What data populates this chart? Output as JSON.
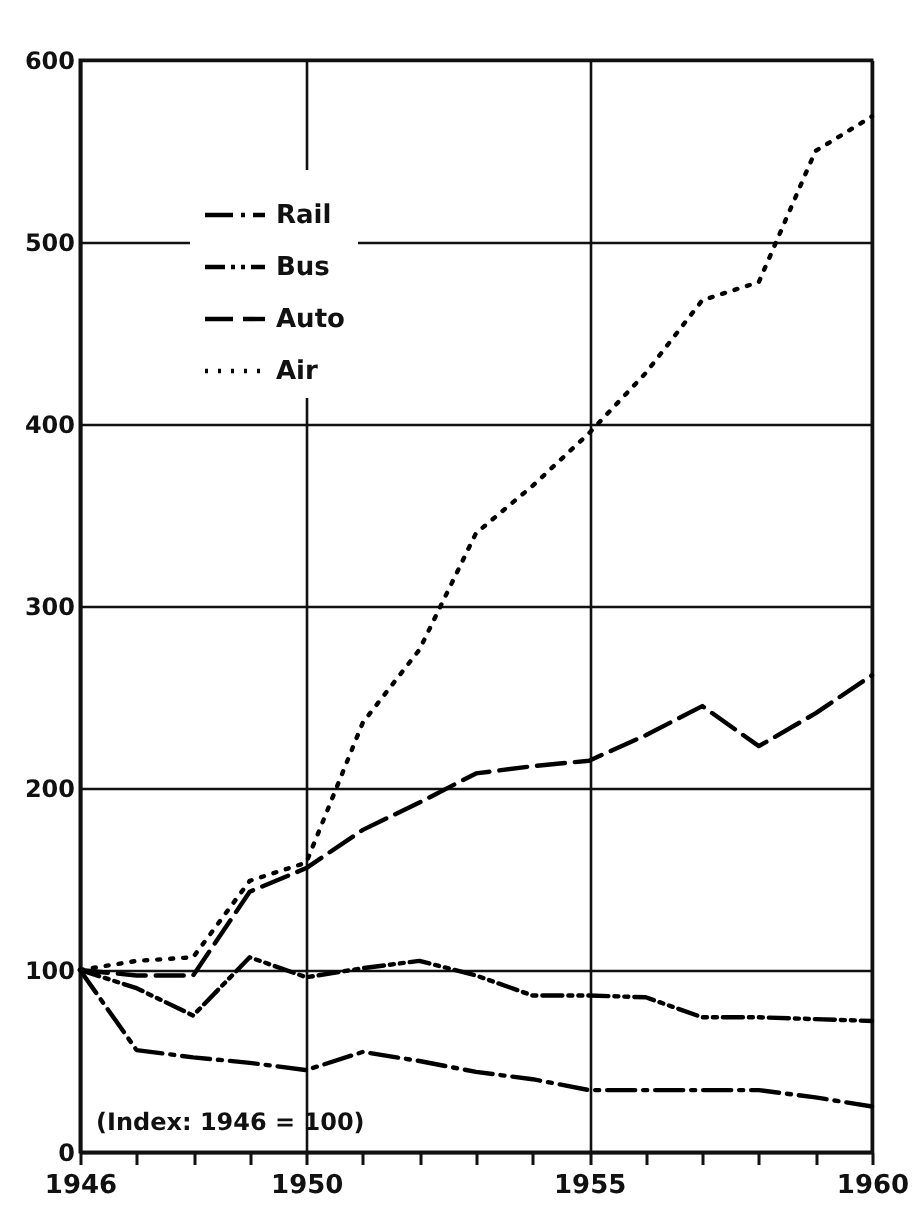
{
  "chart_data": {
    "type": "line",
    "x": [
      1946,
      1947,
      1948,
      1949,
      1950,
      1951,
      1952,
      1953,
      1954,
      1955,
      1956,
      1957,
      1958,
      1959,
      1960
    ],
    "series": [
      {
        "name": "Rail",
        "color": "#000000",
        "line_style": "dashed",
        "values": [
          100,
          56,
          52,
          49,
          45,
          55,
          50,
          44,
          40,
          34,
          34,
          34,
          34,
          30,
          25
        ]
      },
      {
        "name": "Bus",
        "color": "#000000",
        "line_style": "dashed",
        "values": [
          100,
          90,
          75,
          107,
          96,
          101,
          105,
          97,
          86,
          86,
          85,
          74,
          74,
          73,
          72
        ]
      },
      {
        "name": "Auto",
        "color": "#000000",
        "line_style": "dashed",
        "values": [
          100,
          97,
          97,
          143,
          156,
          177,
          192,
          208,
          212,
          215,
          229,
          245,
          223,
          241,
          262
        ]
      },
      {
        "name": "Air",
        "color": "#000000",
        "line_style": "dotted",
        "values": [
          100,
          105,
          107,
          149,
          159,
          236,
          276,
          340,
          366,
          395,
          428,
          468,
          478,
          550,
          569
        ]
      }
    ],
    "xlim": [
      1946,
      1960
    ],
    "xticks": [
      1946,
      {
        "value": 1947,
        "label": null
      },
      {
        "value": 1948,
        "label": null
      },
      {
        "value": 1949,
        "label": null
      },
      1950,
      {
        "value": 1951,
        "label": null
      },
      {
        "value": 1952,
        "label": null
      },
      {
        "value": 1953,
        "label": null
      },
      {
        "value": 1954,
        "label": null
      },
      1955,
      {
        "value": 1956,
        "label": null
      },
      {
        "value": 1957,
        "label": null
      },
      {
        "value": 1958,
        "label": null
      },
      {
        "value": 1959,
        "label": null
      },
      1960
    ],
    "ylim": [
      0,
      600
    ],
    "yticks": [
      0,
      100,
      200,
      300,
      400,
      500,
      600
    ],
    "grid": true,
    "legend": "top left",
    "marker": "none",
    "annotations": [
      "(Index: 1946 = 100)"
    ]
  }
}
